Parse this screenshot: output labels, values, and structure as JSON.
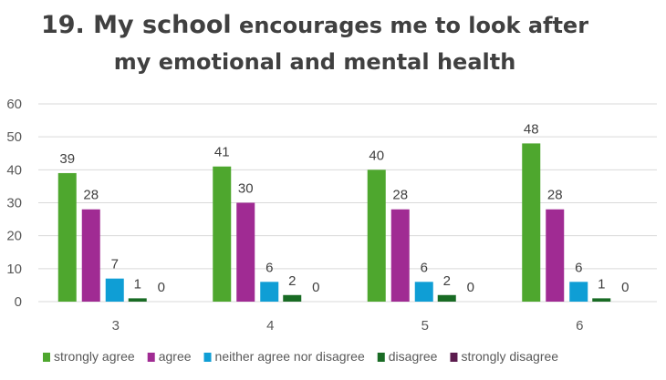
{
  "chart_data": {
    "type": "bar",
    "title_part1": "19. My school",
    "title_part2": " encourages me to look after",
    "title_line2": "my emotional and mental health",
    "categories": [
      "3",
      "4",
      "5",
      "6"
    ],
    "series": [
      {
        "name": "strongly agree",
        "color": "#4ea72e",
        "values": [
          39,
          41,
          40,
          48
        ]
      },
      {
        "name": "agree",
        "color": "#a02b93",
        "values": [
          28,
          30,
          28,
          28
        ]
      },
      {
        "name": "neither agree nor disagree",
        "color": "#0f9ed5",
        "values": [
          7,
          6,
          6,
          6
        ]
      },
      {
        "name": "disagree",
        "color": "#196b24",
        "values": [
          1,
          2,
          2,
          1
        ]
      },
      {
        "name": "strongly disagree",
        "color": "#5c1c4e",
        "values": [
          0,
          0,
          0,
          0
        ]
      }
    ],
    "ylim": [
      0,
      60
    ],
    "yticks": [
      0,
      10,
      20,
      30,
      40,
      50,
      60
    ],
    "grid": true,
    "legend": "bottom"
  }
}
